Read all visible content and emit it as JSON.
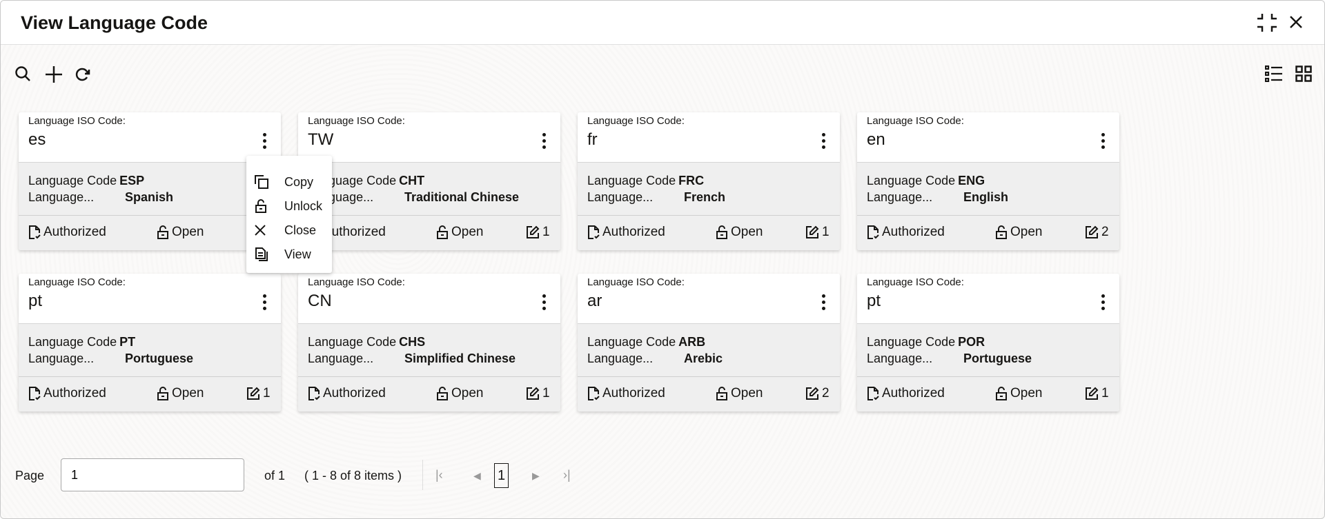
{
  "window": {
    "title": "View Language Code"
  },
  "card_label": "Language ISO Code:",
  "cards": [
    {
      "iso": "es",
      "code_label": "Language Code",
      "code": "ESP",
      "name_label": "Language...",
      "name": "Spanish",
      "auth": "Authorized",
      "status": "Open",
      "count": ""
    },
    {
      "iso": "TW",
      "code_label": "Language Code",
      "code": "CHT",
      "name_label": "Language...",
      "name": "Traditional Chinese",
      "auth": "Authorized",
      "status": "Open",
      "count": "1"
    },
    {
      "iso": "fr",
      "code_label": "Language Code",
      "code": "FRC",
      "name_label": "Language...",
      "name": "French",
      "auth": "Authorized",
      "status": "Open",
      "count": "1"
    },
    {
      "iso": "en",
      "code_label": "Language Code",
      "code": "ENG",
      "name_label": "Language...",
      "name": "English",
      "auth": "Authorized",
      "status": "Open",
      "count": "2"
    },
    {
      "iso": "pt",
      "code_label": "Language Code",
      "code": "PT",
      "name_label": "Language...",
      "name": "Portuguese",
      "auth": "Authorized",
      "status": "Open",
      "count": "1"
    },
    {
      "iso": "CN",
      "code_label": "Language Code",
      "code": "CHS",
      "name_label": "Language...",
      "name": "Simplified Chinese",
      "auth": "Authorized",
      "status": "Open",
      "count": "1"
    },
    {
      "iso": "ar",
      "code_label": "Language Code",
      "code": "ARB",
      "name_label": "Language...",
      "name": "Arebic",
      "auth": "Authorized",
      "status": "Open",
      "count": "2"
    },
    {
      "iso": "pt",
      "code_label": "Language Code",
      "code": "POR",
      "name_label": "Language...",
      "name": "Portuguese",
      "auth": "Authorized",
      "status": "Open",
      "count": "1"
    }
  ],
  "menu": [
    {
      "label": "Copy",
      "icon": "copy-icon"
    },
    {
      "label": "Unlock",
      "icon": "unlock-icon"
    },
    {
      "label": "Close",
      "icon": "close-icon"
    },
    {
      "label": "View",
      "icon": "view-icon"
    }
  ],
  "pager": {
    "label": "Page",
    "value": "1",
    "of": "of 1",
    "range": "( 1 - 8 of 8 items )",
    "current": "1"
  }
}
